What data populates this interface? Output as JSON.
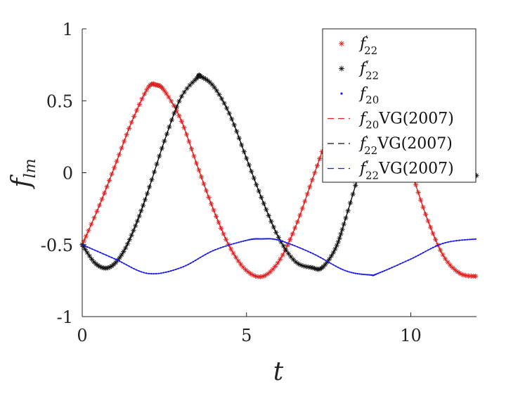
{
  "chart_data": {
    "type": "line",
    "xlabel": "t",
    "ylabel": "f",
    "ylabel_sub": "lm",
    "xlim": [
      0,
      12
    ],
    "ylim": [
      -1,
      1
    ],
    "xticks": [
      0,
      5,
      10
    ],
    "xtick_labels": [
      "0",
      "5",
      "10"
    ],
    "yticks": [
      -1,
      -0.5,
      0,
      0.5,
      1
    ],
    "ytick_labels": [
      "-1",
      "-0.5",
      "0",
      "0.5",
      "1"
    ],
    "grid": false,
    "legend_position": "top-right",
    "series": [
      {
        "name": "f'_22",
        "marker": "asterisk",
        "color": "#e02020",
        "x": [
          0,
          0.5,
          1,
          1.5,
          2,
          2.25,
          2.5,
          3,
          3.5,
          4,
          4.5,
          5,
          5.5,
          6,
          6.5,
          7,
          7.5,
          8,
          8.5,
          9,
          9.5,
          10,
          10.5,
          11,
          11.5,
          12
        ],
        "y": [
          -0.5,
          -0.24,
          0.05,
          0.35,
          0.59,
          0.61,
          0.57,
          0.37,
          0.05,
          -0.26,
          -0.52,
          -0.68,
          -0.72,
          -0.61,
          -0.37,
          -0.05,
          0.27,
          0.52,
          0.63,
          0.57,
          0.35,
          0.02,
          -0.32,
          -0.58,
          -0.7,
          -0.72
        ]
      },
      {
        "name": "f''_22",
        "marker": "asterisk",
        "color": "#111111",
        "x": [
          0,
          0.4,
          0.8,
          1.2,
          1.6,
          2,
          2.5,
          3,
          3.5,
          3.6,
          4,
          4.5,
          5,
          5.5,
          6,
          6.5,
          7,
          7.3,
          7.7,
          8,
          8.5,
          9,
          9.5,
          10,
          10.5,
          11,
          11.5,
          12
        ],
        "y": [
          -0.5,
          -0.63,
          -0.66,
          -0.57,
          -0.38,
          -0.13,
          0.22,
          0.52,
          0.66,
          0.67,
          0.6,
          0.4,
          0.1,
          -0.2,
          -0.46,
          -0.62,
          -0.66,
          -0.66,
          -0.53,
          -0.33,
          0.05,
          0.4,
          0.62,
          0.67,
          0.55,
          0.3,
          0.05,
          -0.02
        ]
      },
      {
        "name": "f_20",
        "marker": "dot",
        "color": "#1a1aee",
        "x": [
          0,
          1,
          2,
          3,
          4,
          5,
          5.45,
          6,
          7,
          8,
          8.75,
          9,
          10,
          11,
          12
        ],
        "y": [
          -0.5,
          -0.6,
          -0.7,
          -0.66,
          -0.54,
          -0.47,
          -0.46,
          -0.47,
          -0.56,
          -0.68,
          -0.71,
          -0.7,
          -0.6,
          -0.49,
          -0.46
        ]
      }
    ],
    "legend": [
      {
        "base": "f",
        "sub": "22",
        "prime": "′",
        "suffix": "",
        "style": "asterisk",
        "color": "#e02020"
      },
      {
        "base": "f",
        "sub": "22",
        "prime": "″",
        "suffix": "",
        "style": "asterisk",
        "color": "#111111"
      },
      {
        "base": "f",
        "sub": "20",
        "prime": "",
        "suffix": "",
        "style": "dot",
        "color": "#1a1aee"
      },
      {
        "base": "f",
        "sub": "20",
        "prime": "",
        "suffix": "VG(2007)",
        "style": "dash",
        "color": "#e02020"
      },
      {
        "base": "f",
        "sub": "22",
        "prime": "′",
        "suffix": "VG(2007)",
        "style": "dash",
        "color": "#111111"
      },
      {
        "base": "f",
        "sub": "22",
        "prime": "″",
        "suffix": "VG(2007)",
        "style": "dash",
        "color": "#1a1aee"
      }
    ]
  }
}
